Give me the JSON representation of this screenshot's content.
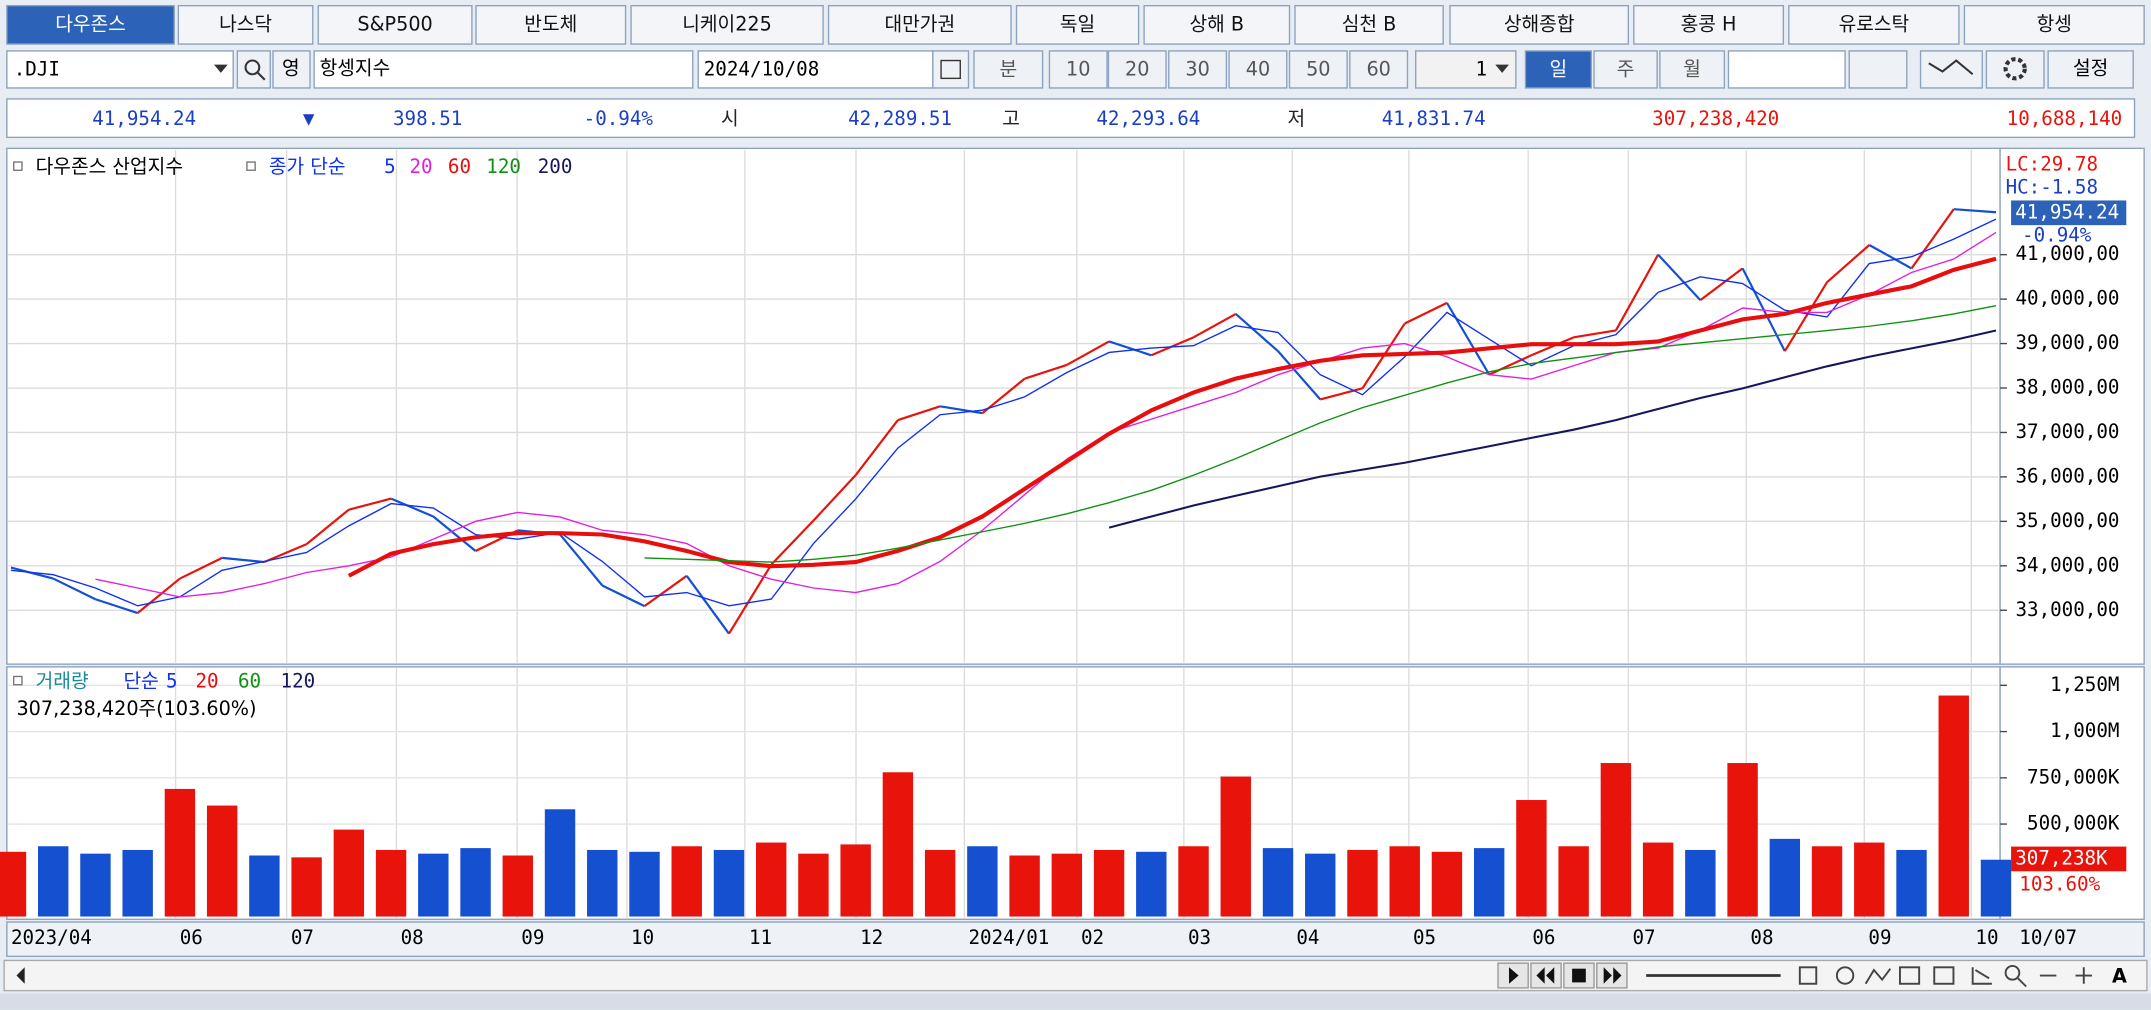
{
  "tabs": [
    "다우존스",
    "나스닥",
    "S&P500",
    "반도체",
    "니케이225",
    "대만가권",
    "독일",
    "상해 B",
    "심천 B",
    "상해종합",
    "홍콩 H",
    "유로스탁",
    "항셍"
  ],
  "toolbar": {
    "symbol": ".DJI",
    "lang": "영",
    "name": "항셍지수",
    "date": "2024/10/08",
    "minute": "분",
    "intervals": [
      "10",
      "20",
      "30",
      "40",
      "50",
      "60"
    ],
    "count": "1",
    "periods": [
      "일",
      "주",
      "월"
    ],
    "settings": "설정"
  },
  "quote": {
    "last": "41,954.24",
    "arrow": "▼",
    "change": "398.51",
    "change_pct": "-0.94%",
    "open_label": "시",
    "open": "42,289.51",
    "high_label": "고",
    "high": "42,293.64",
    "low_label": "저",
    "low": "41,831.74",
    "volume": "307,238,420",
    "amount": "10,688,140"
  },
  "chart_data": [
    {
      "type": "line",
      "title": "다우존스 산업지수",
      "ma_label": "종가 단순",
      "ylim": [
        31850,
        43330
      ],
      "yticks": [
        {
          "value": 33000,
          "label": "33,000,00"
        },
        {
          "value": 34000,
          "label": "34,000,00"
        },
        {
          "value": 35000,
          "label": "35,000,00"
        },
        {
          "value": 36000,
          "label": "36,000,00"
        },
        {
          "value": 37000,
          "label": "37,000,00"
        },
        {
          "value": 38000,
          "label": "38,000,00"
        },
        {
          "value": 39000,
          "label": "39,000,00"
        },
        {
          "value": 40000,
          "label": "40,000,00"
        },
        {
          "value": 41000,
          "label": "41,000,00"
        }
      ],
      "grid": true,
      "side_labels": [
        "LC:29.78",
        "HC:-1.58",
        "41,954.24",
        "-0.94%"
      ],
      "x_labels": [
        "2023/04",
        "06",
        "07",
        "08",
        "09",
        "10",
        "11",
        "12",
        "2024/01",
        "02",
        "03",
        "04",
        "05",
        "06",
        "07",
        "08",
        "09",
        "10"
      ],
      "last_date": "10/07",
      "series": [
        {
          "up_color": "#e8140c",
          "down_color": "#1450d0",
          "values": [
            33961,
            33713,
            33248,
            32938,
            33713,
            34178,
            34085,
            34488,
            35264,
            35512,
            35109,
            34333,
            34798,
            34705,
            33558,
            33093,
            33775,
            32473,
            34023,
            35016,
            36039,
            37279,
            37589,
            37434,
            38209,
            38519,
            39047,
            38736,
            39140,
            39667,
            38829,
            37744,
            37992,
            39450,
            39915,
            38302,
            38736,
            39140,
            39295,
            41000,
            39977,
            40690,
            38829,
            40380,
            41217,
            40690,
            42023,
            41954.24
          ]
        },
        {
          "name": "5",
          "color": "#1030f0",
          "width": 1,
          "values": [
            33900,
            33800,
            33500,
            33100,
            33300,
            33900,
            34100,
            34300,
            34900,
            35400,
            35300,
            34700,
            34600,
            34750,
            34100,
            33300,
            33400,
            33100,
            33250,
            34500,
            35500,
            36650,
            37400,
            37500,
            37800,
            38350,
            38800,
            38900,
            38950,
            39400,
            39250,
            38300,
            37850,
            38700,
            39700,
            39100,
            38500,
            38950,
            39200,
            40150,
            40500,
            40350,
            39750,
            39600,
            40800,
            40950,
            41350,
            41800
          ]
        },
        {
          "name": "20",
          "color": "#e020e0",
          "width": 1,
          "values": [
            null,
            null,
            33700,
            33500,
            33300,
            33400,
            33600,
            33850,
            34000,
            34200,
            34600,
            35000,
            35200,
            35100,
            34800,
            34700,
            34500,
            34000,
            33700,
            33500,
            33400,
            33600,
            34100,
            34800,
            35600,
            36400,
            37000,
            37300,
            37600,
            37900,
            38300,
            38600,
            38900,
            39000,
            38700,
            38300,
            38200,
            38500,
            38800,
            38900,
            39300,
            39800,
            39700,
            39700,
            40100,
            40600,
            40900,
            41500
          ]
        },
        {
          "name": "60",
          "color": "#e80e0e",
          "width": 3,
          "values": [
            null,
            null,
            null,
            null,
            null,
            null,
            null,
            null,
            33775,
            34271,
            34488,
            34643,
            34736,
            34736,
            34705,
            34550,
            34333,
            34085,
            33992,
            34023,
            34085,
            34333,
            34643,
            35109,
            35729,
            36349,
            36969,
            37496,
            37899,
            38209,
            38426,
            38612,
            38736,
            38767,
            38798,
            38891,
            38984,
            38984,
            38984,
            39047,
            39295,
            39543,
            39667,
            39915,
            40101,
            40287,
            40659,
            40907
          ]
        },
        {
          "name": "120",
          "color": "#129012",
          "width": 1,
          "values": [
            null,
            null,
            null,
            null,
            null,
            null,
            null,
            null,
            null,
            null,
            null,
            null,
            null,
            null,
            null,
            34178,
            34147,
            34116,
            34085,
            34147,
            34240,
            34395,
            34581,
            34767,
            34953,
            35171,
            35419,
            35698,
            36039,
            36411,
            36814,
            37217,
            37558,
            37837,
            38116,
            38364,
            38550,
            38674,
            38798,
            38922,
            39016,
            39109,
            39202,
            39295,
            39388,
            39512,
            39667,
            39853
          ]
        },
        {
          "name": "200",
          "color": "#16165e",
          "width": 1.5,
          "values": [
            null,
            null,
            null,
            null,
            null,
            null,
            null,
            null,
            null,
            null,
            null,
            null,
            null,
            null,
            null,
            null,
            null,
            null,
            null,
            null,
            null,
            null,
            null,
            null,
            null,
            null,
            34860,
            35109,
            35357,
            35574,
            35791,
            36008,
            36163,
            36318,
            36504,
            36690,
            36876,
            37062,
            37279,
            37527,
            37775,
            37992,
            38240,
            38488,
            38705,
            38891,
            39078,
            39295
          ]
        }
      ]
    },
    {
      "type": "bar",
      "title": "거래량",
      "ma_label": "단순",
      "legend": [
        {
          "label": "5",
          "color": "#1030f0"
        },
        {
          "label": "20",
          "color": "#e80e0e"
        },
        {
          "label": "60",
          "color": "#129012"
        },
        {
          "label": "120",
          "color": "#16165e"
        }
      ],
      "info": "307,238,420주(103.60%)",
      "side_labels": [
        "307,238K",
        "103.60%"
      ],
      "up_color": "#e8140c",
      "down_color": "#1450d0",
      "ylim": [
        0,
        1335000000
      ],
      "yticks": [
        {
          "value": 500000000,
          "label": "500,000K"
        },
        {
          "value": 750000000,
          "label": "750,000K"
        },
        {
          "value": 1000000000,
          "label": "1,000M"
        },
        {
          "value": 1250000000,
          "label": "1,250M"
        }
      ],
      "values": [
        350000000,
        380000000,
        340000000,
        360000000,
        690000000,
        600000000,
        330000000,
        320000000,
        470000000,
        360000000,
        340000000,
        370000000,
        330000000,
        580000000,
        360000000,
        350000000,
        380000000,
        360000000,
        400000000,
        340000000,
        390000000,
        780000000,
        360000000,
        380000000,
        330000000,
        340000000,
        360000000,
        350000000,
        380000000,
        757000000,
        370000000,
        340000000,
        360000000,
        380000000,
        350000000,
        370000000,
        630000000,
        380000000,
        830000000,
        400000000,
        360000000,
        830000000,
        420000000,
        380000000,
        400000000,
        360000000,
        1195000000,
        307238420
      ]
    }
  ]
}
